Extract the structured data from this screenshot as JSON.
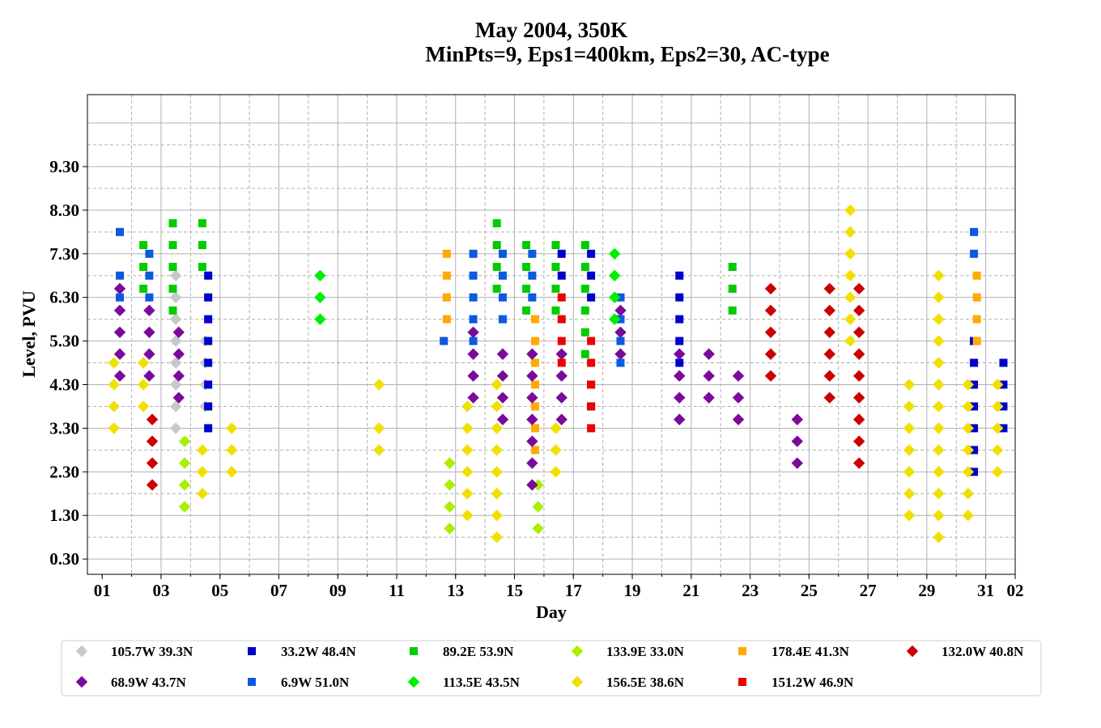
{
  "chart_data": {
    "type": "scatter",
    "title": "May 2004, 350K",
    "subtitle": "MinPts=9, Eps1=400km, Eps2=30, AC-type",
    "xlabel": "Day",
    "ylabel": "Level, PVU",
    "xlim": [
      0.5,
      32.0
    ],
    "ylim": [
      -0.05,
      10.95
    ],
    "xticks": [
      "01",
      "03",
      "05",
      "07",
      "09",
      "11",
      "13",
      "15",
      "17",
      "19",
      "21",
      "23",
      "25",
      "27",
      "29",
      "31",
      "02"
    ],
    "xtick_values": [
      1,
      3,
      5,
      7,
      9,
      11,
      13,
      15,
      17,
      19,
      21,
      23,
      25,
      27,
      29,
      31,
      33
    ],
    "yticks": [
      "0.30",
      "1.30",
      "2.30",
      "3.30",
      "4.30",
      "5.30",
      "6.30",
      "7.30",
      "8.30",
      "9.30"
    ],
    "grid": true,
    "legend_position": "bottom",
    "series": [
      {
        "name": "105.7W 39.3N",
        "color": "#c8c8c8",
        "marker": "diamond",
        "points": [
          [
            3.5,
            3.3
          ],
          [
            3.5,
            3.8
          ],
          [
            3.5,
            4.3
          ],
          [
            3.5,
            4.8
          ],
          [
            3.5,
            5.3
          ],
          [
            3.5,
            5.8
          ],
          [
            3.5,
            6.3
          ],
          [
            3.5,
            6.8
          ],
          [
            4.5,
            3.8
          ],
          [
            4.5,
            4.3
          ],
          [
            4.5,
            4.8
          ],
          [
            4.5,
            5.3
          ]
        ]
      },
      {
        "name": "33.2W 48.4N",
        "color": "#0000cc",
        "marker": "square",
        "points": [
          [
            4.6,
            3.3
          ],
          [
            4.6,
            3.8
          ],
          [
            4.6,
            4.3
          ],
          [
            4.6,
            4.8
          ],
          [
            4.6,
            5.3
          ],
          [
            4.6,
            5.8
          ],
          [
            4.6,
            6.3
          ],
          [
            4.6,
            6.8
          ],
          [
            16.6,
            6.8
          ],
          [
            16.6,
            7.3
          ],
          [
            17.6,
            6.8
          ],
          [
            17.6,
            7.3
          ],
          [
            17.6,
            6.3
          ],
          [
            17.6,
            4.3
          ],
          [
            17.6,
            3.8
          ],
          [
            20.6,
            4.8
          ],
          [
            20.6,
            5.3
          ],
          [
            20.6,
            5.8
          ],
          [
            20.6,
            6.3
          ],
          [
            20.6,
            6.8
          ],
          [
            30.6,
            2.3
          ],
          [
            30.6,
            2.8
          ],
          [
            30.6,
            3.3
          ],
          [
            30.6,
            3.8
          ],
          [
            30.6,
            4.3
          ],
          [
            30.6,
            4.8
          ],
          [
            30.6,
            5.3
          ],
          [
            31.6,
            3.3
          ],
          [
            31.6,
            3.8
          ],
          [
            31.6,
            4.3
          ],
          [
            31.6,
            4.8
          ]
        ]
      },
      {
        "name": "89.2E 53.9N",
        "color": "#00cc00",
        "marker": "square",
        "points": [
          [
            2.4,
            6.5
          ],
          [
            2.4,
            7.0
          ],
          [
            2.4,
            7.5
          ],
          [
            3.4,
            6.0
          ],
          [
            3.4,
            6.5
          ],
          [
            3.4,
            7.0
          ],
          [
            3.4,
            7.5
          ],
          [
            3.4,
            8.0
          ],
          [
            4.4,
            7.0
          ],
          [
            4.4,
            7.5
          ],
          [
            4.4,
            8.0
          ],
          [
            14.4,
            6.5
          ],
          [
            14.4,
            7.0
          ],
          [
            14.4,
            7.5
          ],
          [
            14.4,
            8.0
          ],
          [
            15.4,
            6.0
          ],
          [
            15.4,
            6.5
          ],
          [
            15.4,
            7.0
          ],
          [
            15.4,
            7.5
          ],
          [
            16.4,
            6.0
          ],
          [
            16.4,
            6.5
          ],
          [
            16.4,
            7.0
          ],
          [
            16.4,
            7.5
          ],
          [
            17.4,
            5.0
          ],
          [
            17.4,
            5.5
          ],
          [
            17.4,
            6.0
          ],
          [
            17.4,
            6.5
          ],
          [
            17.4,
            7.0
          ],
          [
            17.4,
            7.5
          ],
          [
            22.4,
            6.0
          ],
          [
            22.4,
            6.5
          ],
          [
            22.4,
            7.0
          ]
        ]
      },
      {
        "name": "133.9E 33.0N",
        "color": "#aaee00",
        "marker": "diamond",
        "points": [
          [
            3.8,
            1.5
          ],
          [
            3.8,
            2.0
          ],
          [
            3.8,
            2.5
          ],
          [
            3.8,
            3.0
          ],
          [
            12.8,
            1.0
          ],
          [
            12.8,
            1.5
          ],
          [
            12.8,
            2.0
          ],
          [
            12.8,
            2.5
          ],
          [
            15.8,
            1.0
          ],
          [
            15.8,
            1.5
          ],
          [
            15.8,
            2.0
          ]
        ]
      },
      {
        "name": "178.4E 41.3N",
        "color": "#ffaa00",
        "marker": "square",
        "points": [
          [
            12.7,
            5.8
          ],
          [
            12.7,
            6.3
          ],
          [
            12.7,
            6.8
          ],
          [
            12.7,
            7.3
          ],
          [
            15.7,
            2.8
          ],
          [
            15.7,
            3.3
          ],
          [
            15.7,
            3.8
          ],
          [
            15.7,
            4.3
          ],
          [
            15.7,
            4.8
          ],
          [
            15.7,
            5.3
          ],
          [
            15.7,
            5.8
          ],
          [
            30.7,
            5.3
          ],
          [
            30.7,
            5.8
          ],
          [
            30.7,
            6.3
          ],
          [
            30.7,
            6.8
          ]
        ]
      },
      {
        "name": "132.0W 40.8N",
        "color": "#cc0000",
        "marker": "diamond",
        "points": [
          [
            2.7,
            2.0
          ],
          [
            2.7,
            2.5
          ],
          [
            2.7,
            3.0
          ],
          [
            2.7,
            3.5
          ],
          [
            23.7,
            4.5
          ],
          [
            23.7,
            5.0
          ],
          [
            23.7,
            5.5
          ],
          [
            23.7,
            6.0
          ],
          [
            23.7,
            6.5
          ],
          [
            25.7,
            4.0
          ],
          [
            25.7,
            4.5
          ],
          [
            25.7,
            5.0
          ],
          [
            25.7,
            5.5
          ],
          [
            25.7,
            6.0
          ],
          [
            25.7,
            6.5
          ],
          [
            26.7,
            2.5
          ],
          [
            26.7,
            3.0
          ],
          [
            26.7,
            3.5
          ],
          [
            26.7,
            4.0
          ],
          [
            26.7,
            4.5
          ],
          [
            26.7,
            5.0
          ],
          [
            26.7,
            5.5
          ],
          [
            26.7,
            6.0
          ],
          [
            26.7,
            6.5
          ]
        ]
      },
      {
        "name": "68.9W 43.7N",
        "color": "#7a0a9a",
        "marker": "diamond",
        "points": [
          [
            1.6,
            4.5
          ],
          [
            1.6,
            5.0
          ],
          [
            1.6,
            5.5
          ],
          [
            1.6,
            6.0
          ],
          [
            1.6,
            6.5
          ],
          [
            2.6,
            4.5
          ],
          [
            2.6,
            5.0
          ],
          [
            2.6,
            5.5
          ],
          [
            2.6,
            6.0
          ],
          [
            3.6,
            4.0
          ],
          [
            3.6,
            4.5
          ],
          [
            3.6,
            5.0
          ],
          [
            3.6,
            5.5
          ],
          [
            13.6,
            4.0
          ],
          [
            13.6,
            4.5
          ],
          [
            13.6,
            5.0
          ],
          [
            13.6,
            5.5
          ],
          [
            14.6,
            3.5
          ],
          [
            14.6,
            4.0
          ],
          [
            14.6,
            4.5
          ],
          [
            14.6,
            5.0
          ],
          [
            15.6,
            2.0
          ],
          [
            15.6,
            2.5
          ],
          [
            15.6,
            3.0
          ],
          [
            15.6,
            3.5
          ],
          [
            15.6,
            4.0
          ],
          [
            15.6,
            4.5
          ],
          [
            15.6,
            5.0
          ],
          [
            16.6,
            3.5
          ],
          [
            16.6,
            4.0
          ],
          [
            16.6,
            4.5
          ],
          [
            16.6,
            5.0
          ],
          [
            18.6,
            5.0
          ],
          [
            18.6,
            5.5
          ],
          [
            18.6,
            6.0
          ],
          [
            20.6,
            3.5
          ],
          [
            20.6,
            4.0
          ],
          [
            20.6,
            4.5
          ],
          [
            20.6,
            5.0
          ],
          [
            21.6,
            4.0
          ],
          [
            21.6,
            4.5
          ],
          [
            21.6,
            5.0
          ],
          [
            22.6,
            3.5
          ],
          [
            22.6,
            4.0
          ],
          [
            22.6,
            4.5
          ],
          [
            24.6,
            2.5
          ],
          [
            24.6,
            3.0
          ],
          [
            24.6,
            3.5
          ]
        ]
      },
      {
        "name": "6.9W 51.0N",
        "color": "#0a5ae0",
        "marker": "square",
        "points": [
          [
            1.6,
            6.3
          ],
          [
            1.6,
            6.8
          ],
          [
            1.6,
            7.8
          ],
          [
            2.6,
            6.3
          ],
          [
            2.6,
            6.8
          ],
          [
            2.6,
            7.3
          ],
          [
            12.6,
            5.3
          ],
          [
            13.6,
            5.3
          ],
          [
            13.6,
            5.8
          ],
          [
            13.6,
            6.3
          ],
          [
            13.6,
            6.8
          ],
          [
            13.6,
            7.3
          ],
          [
            14.6,
            5.8
          ],
          [
            14.6,
            6.3
          ],
          [
            14.6,
            6.8
          ],
          [
            14.6,
            7.3
          ],
          [
            15.6,
            6.3
          ],
          [
            15.6,
            6.8
          ],
          [
            15.6,
            7.3
          ],
          [
            18.6,
            4.8
          ],
          [
            18.6,
            5.3
          ],
          [
            18.6,
            5.8
          ],
          [
            18.6,
            6.3
          ],
          [
            30.6,
            7.3
          ],
          [
            30.6,
            7.8
          ]
        ]
      },
      {
        "name": "113.5E 43.5N",
        "color": "#00ee00",
        "marker": "diamond",
        "points": [
          [
            8.4,
            5.8
          ],
          [
            8.4,
            6.3
          ],
          [
            8.4,
            6.8
          ],
          [
            18.4,
            5.8
          ],
          [
            18.4,
            6.3
          ],
          [
            18.4,
            6.8
          ],
          [
            18.4,
            7.3
          ]
        ]
      },
      {
        "name": "156.5E 38.6N",
        "color": "#f0e000",
        "marker": "diamond",
        "points": [
          [
            1.4,
            3.3
          ],
          [
            1.4,
            3.8
          ],
          [
            1.4,
            4.3
          ],
          [
            1.4,
            4.8
          ],
          [
            2.4,
            3.8
          ],
          [
            2.4,
            4.3
          ],
          [
            2.4,
            4.8
          ],
          [
            4.4,
            1.8
          ],
          [
            4.4,
            2.3
          ],
          [
            4.4,
            2.8
          ],
          [
            5.4,
            2.3
          ],
          [
            5.4,
            2.8
          ],
          [
            5.4,
            3.3
          ],
          [
            10.4,
            2.8
          ],
          [
            10.4,
            3.3
          ],
          [
            10.4,
            4.3
          ],
          [
            13.4,
            1.3
          ],
          [
            13.4,
            1.8
          ],
          [
            13.4,
            2.3
          ],
          [
            13.4,
            2.8
          ],
          [
            13.4,
            3.3
          ],
          [
            13.4,
            3.8
          ],
          [
            14.4,
            0.8
          ],
          [
            14.4,
            1.3
          ],
          [
            14.4,
            1.8
          ],
          [
            14.4,
            2.3
          ],
          [
            14.4,
            2.8
          ],
          [
            14.4,
            3.3
          ],
          [
            14.4,
            3.8
          ],
          [
            14.4,
            4.3
          ],
          [
            16.4,
            2.3
          ],
          [
            16.4,
            2.8
          ],
          [
            16.4,
            3.3
          ],
          [
            26.4,
            5.3
          ],
          [
            26.4,
            5.8
          ],
          [
            26.4,
            6.3
          ],
          [
            26.4,
            6.8
          ],
          [
            26.4,
            7.3
          ],
          [
            26.4,
            7.8
          ],
          [
            26.4,
            8.3
          ],
          [
            28.4,
            1.3
          ],
          [
            28.4,
            1.8
          ],
          [
            28.4,
            2.3
          ],
          [
            28.4,
            2.8
          ],
          [
            28.4,
            3.3
          ],
          [
            28.4,
            3.8
          ],
          [
            28.4,
            4.3
          ],
          [
            29.4,
            0.8
          ],
          [
            29.4,
            1.3
          ],
          [
            29.4,
            1.8
          ],
          [
            29.4,
            2.3
          ],
          [
            29.4,
            2.8
          ],
          [
            29.4,
            3.3
          ],
          [
            29.4,
            3.8
          ],
          [
            29.4,
            4.3
          ],
          [
            29.4,
            4.8
          ],
          [
            29.4,
            5.3
          ],
          [
            29.4,
            5.8
          ],
          [
            29.4,
            6.3
          ],
          [
            29.4,
            6.8
          ],
          [
            30.4,
            1.3
          ],
          [
            30.4,
            1.8
          ],
          [
            30.4,
            2.3
          ],
          [
            30.4,
            2.8
          ],
          [
            30.4,
            3.3
          ],
          [
            30.4,
            3.8
          ],
          [
            30.4,
            4.3
          ],
          [
            31.4,
            2.3
          ],
          [
            31.4,
            2.8
          ],
          [
            31.4,
            3.3
          ],
          [
            31.4,
            3.8
          ],
          [
            31.4,
            4.3
          ]
        ]
      },
      {
        "name": "151.2W 46.9N",
        "color": "#ee0000",
        "marker": "square",
        "points": [
          [
            16.6,
            4.8
          ],
          [
            16.6,
            5.3
          ],
          [
            16.6,
            5.8
          ],
          [
            16.6,
            6.3
          ],
          [
            17.6,
            3.3
          ],
          [
            17.6,
            3.8
          ],
          [
            17.6,
            4.3
          ],
          [
            17.6,
            4.8
          ],
          [
            17.6,
            5.3
          ]
        ]
      }
    ],
    "legend_order": [
      "105.7W 39.3N",
      "33.2W 48.4N",
      "89.2E 53.9N",
      "133.9E 33.0N",
      "178.4E 41.3N",
      "132.0W 40.8N",
      "68.9W 43.7N",
      "6.9W 51.0N",
      "113.5E 43.5N",
      "156.5E 38.6N",
      "151.2W 46.9N"
    ]
  }
}
